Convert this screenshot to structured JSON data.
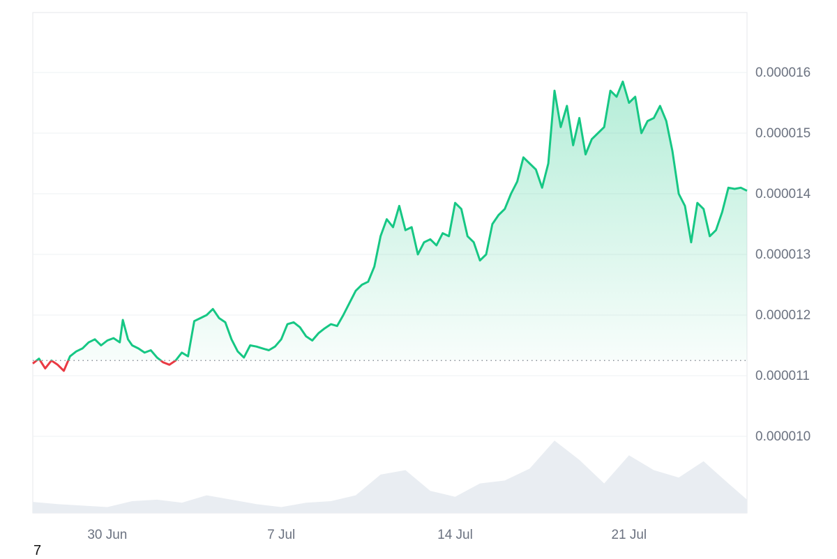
{
  "chart_data": {
    "type": "area",
    "x_ticks": [
      "30 Jun",
      "7 Jul",
      "14 Jul",
      "21 Jul"
    ],
    "y_ticks": [
      "0.000016",
      "0.000015",
      "0.000014",
      "0.000013",
      "0.000012",
      "0.000011",
      "0.000010"
    ],
    "ylim": [
      9e-06,
      1.7e-05
    ],
    "baseline": 1.125e-05,
    "colors": {
      "up": "#16c784",
      "down": "#ea3943",
      "volume": "#e9edf2",
      "grid": "#eef0f3"
    },
    "price_points": [
      [
        "27 Jun 00:00",
        1.12e-05
      ],
      [
        "27 Jun 06:00",
        1.128e-05
      ],
      [
        "27 Jun 12:00",
        1.112e-05
      ],
      [
        "27 Jun 18:00",
        1.125e-05
      ],
      [
        "28 Jun 00:00",
        1.118e-05
      ],
      [
        "28 Jun 06:00",
        1.108e-05
      ],
      [
        "28 Jun 12:00",
        1.132e-05
      ],
      [
        "28 Jun 18:00",
        1.14e-05
      ],
      [
        "29 Jun 00:00",
        1.145e-05
      ],
      [
        "29 Jun 06:00",
        1.155e-05
      ],
      [
        "29 Jun 12:00",
        1.16e-05
      ],
      [
        "29 Jun 18:00",
        1.15e-05
      ],
      [
        "30 Jun 00:00",
        1.158e-05
      ],
      [
        "30 Jun 06:00",
        1.162e-05
      ],
      [
        "30 Jun 12:00",
        1.155e-05
      ],
      [
        "30 Jun 15:00",
        1.192e-05
      ],
      [
        "30 Jun 20:00",
        1.16e-05
      ],
      [
        "1 Jul 00:00",
        1.15e-05
      ],
      [
        "1 Jul 06:00",
        1.145e-05
      ],
      [
        "1 Jul 12:00",
        1.138e-05
      ],
      [
        "1 Jul 18:00",
        1.142e-05
      ],
      [
        "2 Jul 00:00",
        1.13e-05
      ],
      [
        "2 Jul 06:00",
        1.122e-05
      ],
      [
        "2 Jul 12:00",
        1.118e-05
      ],
      [
        "2 Jul 18:00",
        1.125e-05
      ],
      [
        "3 Jul 00:00",
        1.138e-05
      ],
      [
        "3 Jul 06:00",
        1.132e-05
      ],
      [
        "3 Jul 12:00",
        1.19e-05
      ],
      [
        "3 Jul 18:00",
        1.195e-05
      ],
      [
        "4 Jul 00:00",
        1.2e-05
      ],
      [
        "4 Jul 06:00",
        1.21e-05
      ],
      [
        "4 Jul 12:00",
        1.195e-05
      ],
      [
        "4 Jul 18:00",
        1.188e-05
      ],
      [
        "5 Jul 00:00",
        1.16e-05
      ],
      [
        "5 Jul 06:00",
        1.14e-05
      ],
      [
        "5 Jul 12:00",
        1.13e-05
      ],
      [
        "5 Jul 18:00",
        1.15e-05
      ],
      [
        "6 Jul 00:00",
        1.148e-05
      ],
      [
        "6 Jul 06:00",
        1.145e-05
      ],
      [
        "6 Jul 12:00",
        1.142e-05
      ],
      [
        "6 Jul 18:00",
        1.148e-05
      ],
      [
        "7 Jul 00:00",
        1.16e-05
      ],
      [
        "7 Jul 06:00",
        1.185e-05
      ],
      [
        "7 Jul 12:00",
        1.188e-05
      ],
      [
        "7 Jul 18:00",
        1.18e-05
      ],
      [
        "8 Jul 00:00",
        1.165e-05
      ],
      [
        "8 Jul 06:00",
        1.158e-05
      ],
      [
        "8 Jul 12:00",
        1.17e-05
      ],
      [
        "8 Jul 18:00",
        1.178e-05
      ],
      [
        "9 Jul 00:00",
        1.185e-05
      ],
      [
        "9 Jul 06:00",
        1.182e-05
      ],
      [
        "9 Jul 12:00",
        1.2e-05
      ],
      [
        "9 Jul 18:00",
        1.22e-05
      ],
      [
        "10 Jul 00:00",
        1.24e-05
      ],
      [
        "10 Jul 06:00",
        1.25e-05
      ],
      [
        "10 Jul 12:00",
        1.255e-05
      ],
      [
        "10 Jul 18:00",
        1.28e-05
      ],
      [
        "11 Jul 00:00",
        1.33e-05
      ],
      [
        "11 Jul 06:00",
        1.358e-05
      ],
      [
        "11 Jul 12:00",
        1.345e-05
      ],
      [
        "11 Jul 18:00",
        1.38e-05
      ],
      [
        "12 Jul 00:00",
        1.34e-05
      ],
      [
        "12 Jul 06:00",
        1.345e-05
      ],
      [
        "12 Jul 12:00",
        1.3e-05
      ],
      [
        "12 Jul 18:00",
        1.32e-05
      ],
      [
        "13 Jul 00:00",
        1.325e-05
      ],
      [
        "13 Jul 06:00",
        1.315e-05
      ],
      [
        "13 Jul 12:00",
        1.335e-05
      ],
      [
        "13 Jul 18:00",
        1.33e-05
      ],
      [
        "14 Jul 00:00",
        1.385e-05
      ],
      [
        "14 Jul 06:00",
        1.375e-05
      ],
      [
        "14 Jul 12:00",
        1.33e-05
      ],
      [
        "14 Jul 18:00",
        1.32e-05
      ],
      [
        "15 Jul 00:00",
        1.29e-05
      ],
      [
        "15 Jul 06:00",
        1.3e-05
      ],
      [
        "15 Jul 12:00",
        1.35e-05
      ],
      [
        "15 Jul 18:00",
        1.365e-05
      ],
      [
        "16 Jul 00:00",
        1.375e-05
      ],
      [
        "16 Jul 06:00",
        1.4e-05
      ],
      [
        "16 Jul 12:00",
        1.42e-05
      ],
      [
        "16 Jul 18:00",
        1.46e-05
      ],
      [
        "17 Jul 00:00",
        1.45e-05
      ],
      [
        "17 Jul 06:00",
        1.44e-05
      ],
      [
        "17 Jul 12:00",
        1.41e-05
      ],
      [
        "17 Jul 18:00",
        1.45e-05
      ],
      [
        "18 Jul 00:00",
        1.57e-05
      ],
      [
        "18 Jul 06:00",
        1.51e-05
      ],
      [
        "18 Jul 12:00",
        1.545e-05
      ],
      [
        "18 Jul 18:00",
        1.48e-05
      ],
      [
        "19 Jul 00:00",
        1.525e-05
      ],
      [
        "19 Jul 06:00",
        1.465e-05
      ],
      [
        "19 Jul 12:00",
        1.49e-05
      ],
      [
        "19 Jul 18:00",
        1.5e-05
      ],
      [
        "20 Jul 00:00",
        1.51e-05
      ],
      [
        "20 Jul 06:00",
        1.57e-05
      ],
      [
        "20 Jul 12:00",
        1.56e-05
      ],
      [
        "20 Jul 18:00",
        1.585e-05
      ],
      [
        "21 Jul 00:00",
        1.55e-05
      ],
      [
        "21 Jul 06:00",
        1.56e-05
      ],
      [
        "21 Jul 12:00",
        1.5e-05
      ],
      [
        "21 Jul 18:00",
        1.52e-05
      ],
      [
        "22 Jul 00:00",
        1.525e-05
      ],
      [
        "22 Jul 06:00",
        1.545e-05
      ],
      [
        "22 Jul 12:00",
        1.52e-05
      ],
      [
        "22 Jul 18:00",
        1.47e-05
      ],
      [
        "23 Jul 00:00",
        1.4e-05
      ],
      [
        "23 Jul 06:00",
        1.38e-05
      ],
      [
        "23 Jul 12:00",
        1.32e-05
      ],
      [
        "23 Jul 18:00",
        1.385e-05
      ],
      [
        "24 Jul 00:00",
        1.375e-05
      ],
      [
        "24 Jul 06:00",
        1.33e-05
      ],
      [
        "24 Jul 12:00",
        1.34e-05
      ],
      [
        "24 Jul 18:00",
        1.37e-05
      ],
      [
        "25 Jul 00:00",
        1.41e-05
      ],
      [
        "25 Jul 06:00",
        1.408e-05
      ],
      [
        "25 Jul 12:00",
        1.41e-05
      ],
      [
        "25 Jul 18:00",
        1.405e-05
      ]
    ],
    "volume_points": [
      [
        "27 Jun 00:00",
        0.15
      ],
      [
        "28 Jun 00:00",
        0.12
      ],
      [
        "29 Jun 00:00",
        0.1
      ],
      [
        "30 Jun 00:00",
        0.08
      ],
      [
        "1 Jul 00:00",
        0.16
      ],
      [
        "2 Jul 00:00",
        0.18
      ],
      [
        "3 Jul 00:00",
        0.14
      ],
      [
        "4 Jul 00:00",
        0.24
      ],
      [
        "5 Jul 00:00",
        0.18
      ],
      [
        "6 Jul 00:00",
        0.12
      ],
      [
        "7 Jul 00:00",
        0.08
      ],
      [
        "8 Jul 00:00",
        0.14
      ],
      [
        "9 Jul 00:00",
        0.16
      ],
      [
        "10 Jul 00:00",
        0.24
      ],
      [
        "11 Jul 00:00",
        0.52
      ],
      [
        "12 Jul 00:00",
        0.58
      ],
      [
        "13 Jul 00:00",
        0.3
      ],
      [
        "14 Jul 00:00",
        0.22
      ],
      [
        "15 Jul 00:00",
        0.4
      ],
      [
        "16 Jul 00:00",
        0.44
      ],
      [
        "17 Jul 00:00",
        0.6
      ],
      [
        "18 Jul 00:00",
        0.98
      ],
      [
        "19 Jul 00:00",
        0.72
      ],
      [
        "20 Jul 00:00",
        0.4
      ],
      [
        "21 Jul 00:00",
        0.78
      ],
      [
        "22 Jul 00:00",
        0.58
      ],
      [
        "23 Jul 00:00",
        0.48
      ],
      [
        "24 Jul 00:00",
        0.7
      ],
      [
        "25 Jul 00:00",
        0.4
      ],
      [
        "25 Jul 18:00",
        0.18
      ]
    ]
  },
  "footer": {
    "note": "7"
  }
}
